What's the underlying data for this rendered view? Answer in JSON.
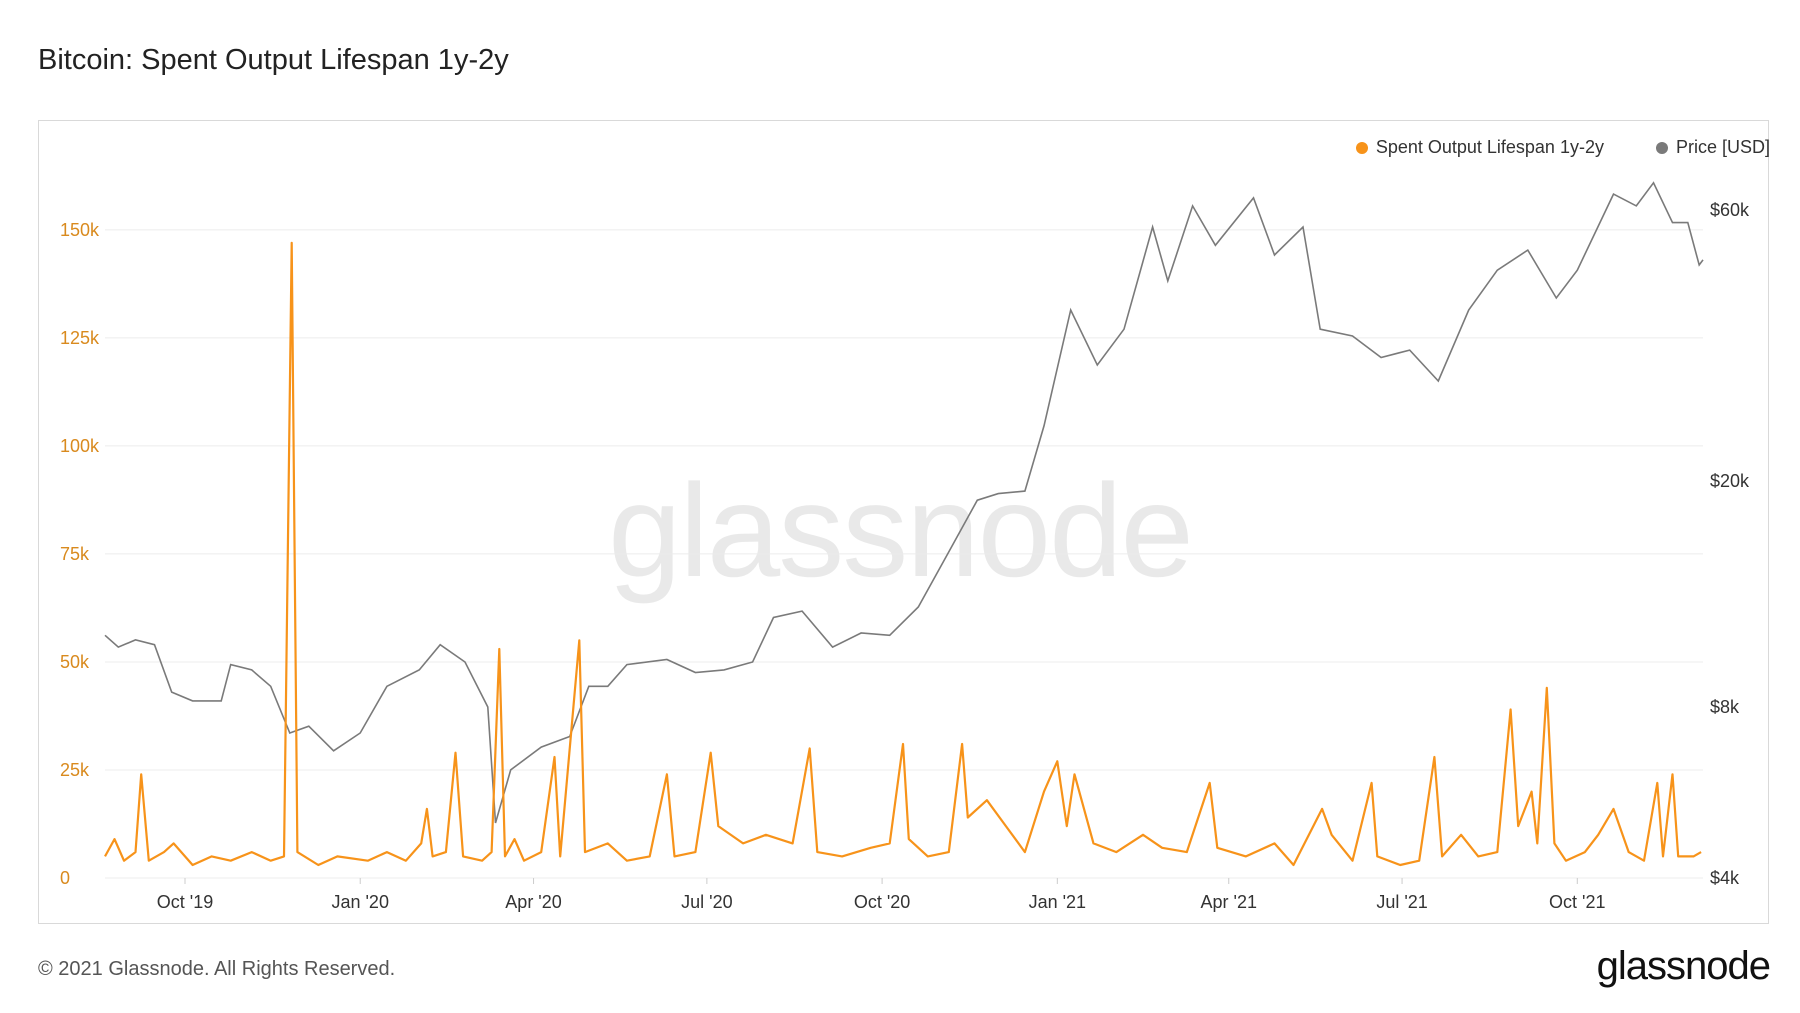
{
  "title": "Bitcoin: Spent Output Lifespan 1y-2y",
  "legend": {
    "series1": "Spent Output Lifespan 1y-2y",
    "series2": "Price [USD]"
  },
  "watermark": "glassnode",
  "footer": "© 2021 Glassnode. All Rights Reserved.",
  "brand": "glassnode",
  "colors": {
    "sopr_line": "#f7931a",
    "price_line": "#7a7a7a",
    "left_axis_text": "#d98a1e",
    "right_axis_text": "#333333",
    "grid": "#ececec"
  },
  "chart_data": {
    "type": "line",
    "x_ticks": [
      "Oct '19",
      "Jan '20",
      "Apr '20",
      "Jul '20",
      "Oct '20",
      "Jan '21",
      "Apr '21",
      "Jul '21",
      "Oct '21"
    ],
    "y_left": {
      "ticks": [
        "0",
        "25k",
        "50k",
        "75k",
        "100k",
        "125k",
        "150k"
      ],
      "values": [
        0,
        25000,
        50000,
        75000,
        100000,
        125000,
        150000
      ],
      "ylim": [
        0,
        165000
      ]
    },
    "y_right": {
      "ticks": [
        "$4k",
        "$8k",
        "$20k",
        "$60k"
      ],
      "values": [
        4000,
        8000,
        20000,
        60000
      ],
      "scale": "log",
      "ylim": [
        4000,
        72000
      ]
    },
    "grid": true,
    "legend_position": "top-right",
    "series": [
      {
        "name": "Spent Output Lifespan 1y-2y",
        "axis": "left",
        "points": [
          [
            "2019-08-20",
            5000
          ],
          [
            "2019-08-25",
            9000
          ],
          [
            "2019-08-30",
            4000
          ],
          [
            "2019-09-05",
            6000
          ],
          [
            "2019-09-08",
            24000
          ],
          [
            "2019-09-12",
            4000
          ],
          [
            "2019-09-20",
            6000
          ],
          [
            "2019-09-25",
            8000
          ],
          [
            "2019-10-05",
            3000
          ],
          [
            "2019-10-15",
            5000
          ],
          [
            "2019-10-25",
            4000
          ],
          [
            "2019-11-05",
            6000
          ],
          [
            "2019-11-15",
            4000
          ],
          [
            "2019-11-22",
            5000
          ],
          [
            "2019-11-26",
            147000
          ],
          [
            "2019-11-29",
            6000
          ],
          [
            "2019-12-10",
            3000
          ],
          [
            "2019-12-20",
            5000
          ],
          [
            "2020-01-05",
            4000
          ],
          [
            "2020-01-15",
            6000
          ],
          [
            "2020-01-25",
            4000
          ],
          [
            "2020-02-02",
            8000
          ],
          [
            "2020-02-05",
            16000
          ],
          [
            "2020-02-08",
            5000
          ],
          [
            "2020-02-15",
            6000
          ],
          [
            "2020-02-20",
            29000
          ],
          [
            "2020-02-24",
            5000
          ],
          [
            "2020-03-05",
            4000
          ],
          [
            "2020-03-10",
            6000
          ],
          [
            "2020-03-14",
            53000
          ],
          [
            "2020-03-17",
            5000
          ],
          [
            "2020-03-22",
            9000
          ],
          [
            "2020-03-27",
            4000
          ],
          [
            "2020-04-05",
            6000
          ],
          [
            "2020-04-12",
            28000
          ],
          [
            "2020-04-15",
            5000
          ],
          [
            "2020-04-25",
            55000
          ],
          [
            "2020-04-28",
            6000
          ],
          [
            "2020-05-10",
            8000
          ],
          [
            "2020-05-20",
            4000
          ],
          [
            "2020-06-01",
            5000
          ],
          [
            "2020-06-10",
            24000
          ],
          [
            "2020-06-14",
            5000
          ],
          [
            "2020-06-25",
            6000
          ],
          [
            "2020-07-03",
            29000
          ],
          [
            "2020-07-07",
            12000
          ],
          [
            "2020-07-20",
            8000
          ],
          [
            "2020-08-01",
            10000
          ],
          [
            "2020-08-15",
            8000
          ],
          [
            "2020-08-24",
            30000
          ],
          [
            "2020-08-28",
            6000
          ],
          [
            "2020-09-10",
            5000
          ],
          [
            "2020-09-25",
            7000
          ],
          [
            "2020-10-05",
            8000
          ],
          [
            "2020-10-12",
            31000
          ],
          [
            "2020-10-15",
            9000
          ],
          [
            "2020-10-25",
            5000
          ],
          [
            "2020-11-05",
            6000
          ],
          [
            "2020-11-12",
            31000
          ],
          [
            "2020-11-15",
            14000
          ],
          [
            "2020-11-25",
            18000
          ],
          [
            "2020-12-05",
            12000
          ],
          [
            "2020-12-15",
            6000
          ],
          [
            "2020-12-25",
            20000
          ],
          [
            "2021-01-01",
            27000
          ],
          [
            "2021-01-06",
            12000
          ],
          [
            "2021-01-10",
            24000
          ],
          [
            "2021-01-20",
            8000
          ],
          [
            "2021-02-01",
            6000
          ],
          [
            "2021-02-15",
            10000
          ],
          [
            "2021-02-25",
            7000
          ],
          [
            "2021-03-10",
            6000
          ],
          [
            "2021-03-22",
            22000
          ],
          [
            "2021-03-26",
            7000
          ],
          [
            "2021-04-10",
            5000
          ],
          [
            "2021-04-25",
            8000
          ],
          [
            "2021-05-05",
            3000
          ],
          [
            "2021-05-20",
            16000
          ],
          [
            "2021-05-25",
            10000
          ],
          [
            "2021-06-05",
            4000
          ],
          [
            "2021-06-15",
            22000
          ],
          [
            "2021-06-18",
            5000
          ],
          [
            "2021-06-30",
            3000
          ],
          [
            "2021-07-10",
            4000
          ],
          [
            "2021-07-18",
            28000
          ],
          [
            "2021-07-22",
            5000
          ],
          [
            "2021-08-01",
            10000
          ],
          [
            "2021-08-10",
            5000
          ],
          [
            "2021-08-20",
            6000
          ],
          [
            "2021-08-27",
            39000
          ],
          [
            "2021-08-31",
            12000
          ],
          [
            "2021-09-07",
            20000
          ],
          [
            "2021-09-10",
            8000
          ],
          [
            "2021-09-15",
            44000
          ],
          [
            "2021-09-19",
            8000
          ],
          [
            "2021-09-25",
            4000
          ],
          [
            "2021-10-05",
            6000
          ],
          [
            "2021-10-12",
            10000
          ],
          [
            "2021-10-20",
            16000
          ],
          [
            "2021-10-28",
            6000
          ],
          [
            "2021-11-05",
            4000
          ],
          [
            "2021-11-12",
            22000
          ],
          [
            "2021-11-15",
            5000
          ],
          [
            "2021-11-20",
            24000
          ],
          [
            "2021-11-23",
            5000
          ],
          [
            "2021-12-01",
            5000
          ],
          [
            "2021-12-05",
            6000
          ]
        ]
      },
      {
        "name": "Price [USD]",
        "axis": "right",
        "points": [
          [
            "2019-08-20",
            10700
          ],
          [
            "2019-08-27",
            10200
          ],
          [
            "2019-09-05",
            10500
          ],
          [
            "2019-09-15",
            10300
          ],
          [
            "2019-09-24",
            8500
          ],
          [
            "2019-10-05",
            8200
          ],
          [
            "2019-10-20",
            8200
          ],
          [
            "2019-10-25",
            9500
          ],
          [
            "2019-11-05",
            9300
          ],
          [
            "2019-11-15",
            8700
          ],
          [
            "2019-11-25",
            7200
          ],
          [
            "2019-12-05",
            7400
          ],
          [
            "2019-12-18",
            6700
          ],
          [
            "2020-01-01",
            7200
          ],
          [
            "2020-01-15",
            8700
          ],
          [
            "2020-02-01",
            9300
          ],
          [
            "2020-02-12",
            10300
          ],
          [
            "2020-02-25",
            9600
          ],
          [
            "2020-03-08",
            8000
          ],
          [
            "2020-03-12",
            5000
          ],
          [
            "2020-03-20",
            6200
          ],
          [
            "2020-04-05",
            6800
          ],
          [
            "2020-04-20",
            7100
          ],
          [
            "2020-04-30",
            8700
          ],
          [
            "2020-05-10",
            8700
          ],
          [
            "2020-05-20",
            9500
          ],
          [
            "2020-06-10",
            9700
          ],
          [
            "2020-06-25",
            9200
          ],
          [
            "2020-07-10",
            9300
          ],
          [
            "2020-07-25",
            9600
          ],
          [
            "2020-08-05",
            11500
          ],
          [
            "2020-08-20",
            11800
          ],
          [
            "2020-09-05",
            10200
          ],
          [
            "2020-09-20",
            10800
          ],
          [
            "2020-10-05",
            10700
          ],
          [
            "2020-10-20",
            12000
          ],
          [
            "2020-11-05",
            15000
          ],
          [
            "2020-11-20",
            18500
          ],
          [
            "2020-12-01",
            19000
          ],
          [
            "2020-12-15",
            19200
          ],
          [
            "2020-12-25",
            25000
          ],
          [
            "2021-01-08",
            40000
          ],
          [
            "2021-01-22",
            32000
          ],
          [
            "2021-02-05",
            37000
          ],
          [
            "2021-02-20",
            56000
          ],
          [
            "2021-02-28",
            45000
          ],
          [
            "2021-03-13",
            61000
          ],
          [
            "2021-03-25",
            52000
          ],
          [
            "2021-04-14",
            63000
          ],
          [
            "2021-04-25",
            50000
          ],
          [
            "2021-05-10",
            56000
          ],
          [
            "2021-05-19",
            37000
          ],
          [
            "2021-06-05",
            36000
          ],
          [
            "2021-06-20",
            33000
          ],
          [
            "2021-07-05",
            34000
          ],
          [
            "2021-07-20",
            30000
          ],
          [
            "2021-08-05",
            40000
          ],
          [
            "2021-08-20",
            47000
          ],
          [
            "2021-09-05",
            51000
          ],
          [
            "2021-09-20",
            42000
          ],
          [
            "2021-10-01",
            47000
          ],
          [
            "2021-10-20",
            64000
          ],
          [
            "2021-11-01",
            61000
          ],
          [
            "2021-11-10",
            67000
          ],
          [
            "2021-11-20",
            57000
          ],
          [
            "2021-11-28",
            57000
          ],
          [
            "2021-12-04",
            48000
          ],
          [
            "2021-12-06",
            49000
          ]
        ]
      }
    ]
  }
}
